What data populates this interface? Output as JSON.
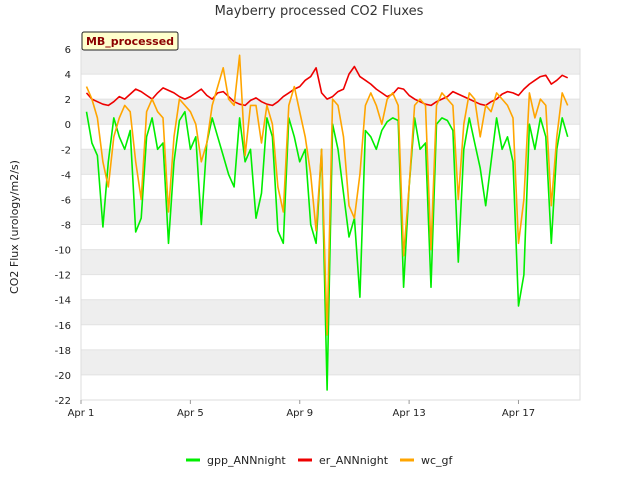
{
  "chart_data": {
    "type": "line",
    "title": "Mayberry processed CO2 Fluxes",
    "badge": "MB_processed",
    "xlabel": "",
    "ylabel": "CO2 Flux (urology/m2/s)",
    "xlim": [
      0,
      18.25
    ],
    "ylim": [
      -22,
      6
    ],
    "yticks": [
      6,
      4,
      2,
      0,
      -2,
      -4,
      -6,
      -8,
      -10,
      -12,
      -14,
      -16,
      -18,
      -20,
      -22
    ],
    "xticks": [
      {
        "value": 0,
        "label": "Apr 1"
      },
      {
        "value": 4,
        "label": "Apr 5"
      },
      {
        "value": 8,
        "label": "Apr 9"
      },
      {
        "value": 12,
        "label": "Apr 13"
      },
      {
        "value": 16,
        "label": "Apr 17"
      }
    ],
    "band_color": "#eeeeee",
    "x": [
      0.2,
      0.4,
      0.6,
      0.8,
      1.0,
      1.2,
      1.4,
      1.6,
      1.8,
      2.0,
      2.2,
      2.4,
      2.6,
      2.8,
      3.0,
      3.2,
      3.4,
      3.6,
      3.8,
      4.0,
      4.2,
      4.4,
      4.6,
      4.8,
      5.0,
      5.2,
      5.4,
      5.6,
      5.8,
      6.0,
      6.2,
      6.4,
      6.6,
      6.8,
      7.0,
      7.2,
      7.4,
      7.6,
      7.8,
      8.0,
      8.2,
      8.4,
      8.6,
      8.8,
      9.0,
      9.2,
      9.4,
      9.6,
      9.8,
      10.0,
      10.2,
      10.4,
      10.6,
      10.8,
      11.0,
      11.2,
      11.4,
      11.6,
      11.8,
      12.0,
      12.2,
      12.4,
      12.6,
      12.8,
      13.0,
      13.2,
      13.4,
      13.6,
      13.8,
      14.0,
      14.2,
      14.4,
      14.6,
      14.8,
      15.0,
      15.2,
      15.4,
      15.6,
      15.8,
      16.0,
      16.2,
      16.4,
      16.6,
      16.8,
      17.0,
      17.2,
      17.4,
      17.6,
      17.8
    ],
    "series": [
      {
        "name": "gpp_ANNnight",
        "color": "#00ee00",
        "values": [
          1.0,
          -1.5,
          -2.5,
          -8.2,
          -3.0,
          0.5,
          -1.0,
          -2.0,
          -0.5,
          -8.6,
          -7.5,
          -1.0,
          0.5,
          -2.0,
          -1.5,
          -9.5,
          -3.0,
          0.3,
          1.0,
          -2.0,
          -1.0,
          -8.0,
          -1.5,
          0.5,
          -1.0,
          -2.5,
          -4.0,
          -5.0,
          0.5,
          -3.0,
          -2.0,
          -7.5,
          -5.5,
          0.5,
          -1.0,
          -8.5,
          -9.5,
          0.5,
          -1.0,
          -3.0,
          -2.0,
          -8.0,
          -9.5,
          -2.0,
          -21.2,
          0.0,
          -2.0,
          -5.5,
          -9.0,
          -7.5,
          -13.8,
          -0.5,
          -1.0,
          -2.0,
          -0.5,
          0.2,
          0.5,
          0.3,
          -13.0,
          -5.0,
          0.5,
          -2.0,
          -1.5,
          -13.0,
          0.0,
          0.5,
          0.3,
          -0.5,
          -11.0,
          -2.0,
          0.5,
          -1.5,
          -3.5,
          -6.5,
          -3.0,
          0.5,
          -2.0,
          -1.0,
          -3.0,
          -14.5,
          -12.0,
          0.0,
          -2.0,
          0.5,
          -1.0,
          -9.5,
          -2.0,
          0.5,
          -1.0
        ]
      },
      {
        "name": "er_ANNnight",
        "color": "#ee0000",
        "values": [
          2.5,
          2.0,
          1.8,
          1.6,
          1.5,
          1.8,
          2.2,
          2.0,
          2.4,
          2.8,
          2.6,
          2.3,
          2.0,
          2.5,
          2.9,
          2.7,
          2.5,
          2.2,
          2.0,
          2.2,
          2.5,
          2.8,
          2.3,
          2.0,
          2.5,
          2.6,
          2.2,
          1.8,
          1.6,
          1.5,
          1.9,
          2.1,
          1.8,
          1.6,
          1.5,
          1.8,
          2.2,
          2.5,
          2.8,
          3.0,
          3.5,
          3.8,
          4.5,
          2.5,
          2.0,
          2.2,
          2.6,
          2.8,
          4.0,
          4.6,
          3.8,
          3.5,
          3.2,
          2.8,
          2.5,
          2.2,
          2.4,
          2.9,
          2.8,
          2.3,
          2.0,
          1.8,
          1.6,
          1.5,
          1.8,
          2.0,
          2.2,
          2.6,
          2.4,
          2.2,
          2.0,
          1.8,
          1.6,
          1.5,
          1.8,
          2.0,
          2.4,
          2.6,
          2.5,
          2.3,
          2.8,
          3.2,
          3.5,
          3.8,
          3.9,
          3.2,
          3.5,
          3.9,
          3.7
        ]
      },
      {
        "name": "wc_gf",
        "color": "#ffa500",
        "values": [
          3.0,
          2.0,
          0.5,
          -3.0,
          -5.0,
          -1.0,
          0.5,
          1.5,
          1.0,
          -3.0,
          -6.0,
          1.0,
          2.0,
          1.0,
          0.5,
          -7.0,
          -1.0,
          2.0,
          1.5,
          1.0,
          0.0,
          -3.0,
          -1.5,
          1.5,
          3.0,
          4.5,
          2.0,
          1.5,
          5.5,
          -2.5,
          1.5,
          1.5,
          -1.5,
          1.5,
          0.0,
          -5.0,
          -7.0,
          1.5,
          3.0,
          1.0,
          -1.0,
          -4.0,
          -8.5,
          -2.0,
          -16.8,
          2.0,
          1.5,
          -1.0,
          -6.5,
          -7.5,
          -4.0,
          1.5,
          2.5,
          1.5,
          0.0,
          2.0,
          2.5,
          1.5,
          -10.5,
          -5.0,
          1.5,
          2.0,
          1.5,
          -10.0,
          1.5,
          2.5,
          2.0,
          1.5,
          -6.0,
          0.0,
          2.5,
          2.0,
          -1.0,
          1.5,
          1.0,
          2.5,
          2.0,
          1.5,
          0.5,
          -9.5,
          -6.0,
          2.5,
          0.5,
          2.0,
          1.5,
          -6.5,
          -1.0,
          2.5,
          1.5
        ]
      }
    ],
    "legend": [
      {
        "name": "gpp_ANNnight",
        "color": "#00ee00"
      },
      {
        "name": "er_ANNnight",
        "color": "#ee0000"
      },
      {
        "name": "wc_gf",
        "color": "#ffa500"
      }
    ],
    "legend_position": "bottom-center"
  }
}
